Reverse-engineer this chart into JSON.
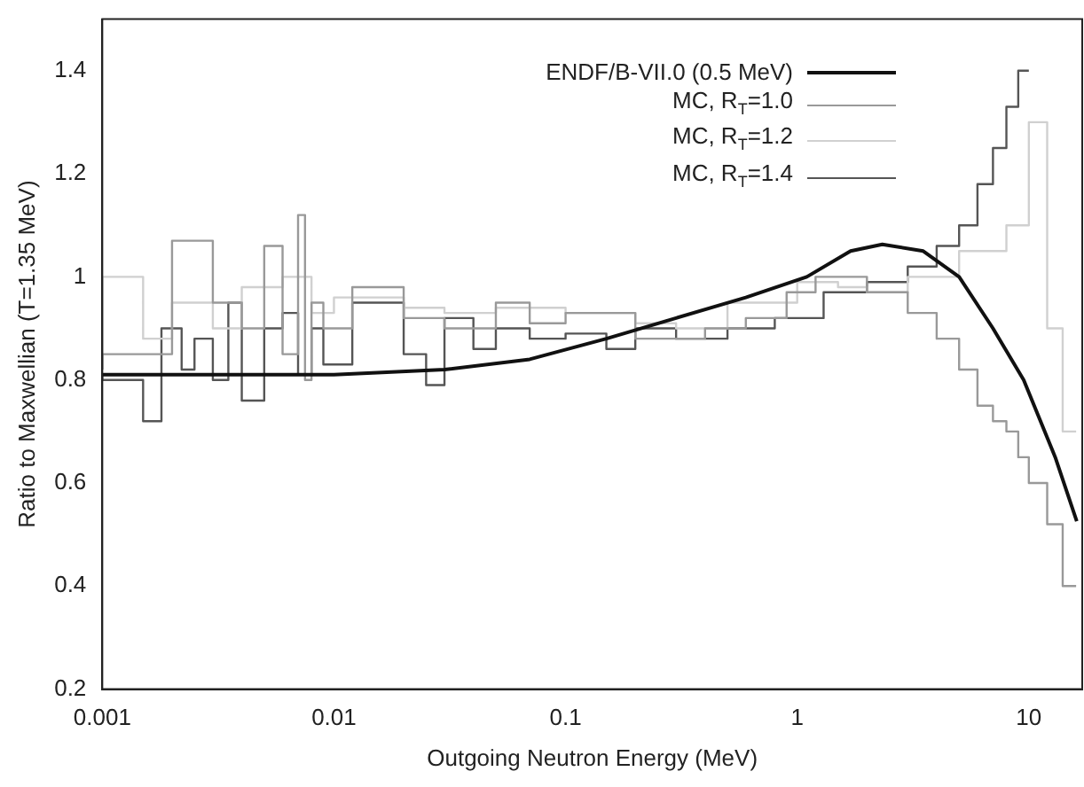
{
  "chart_data": {
    "type": "step",
    "xlabel": "Outgoing Neutron Energy (MeV)",
    "ylabel": "Ratio to Maxwellian (T=1.35 MeV)",
    "log": "x",
    "xlim": [
      0.001,
      17
    ],
    "xticks": [
      0.001,
      0.01,
      0.1,
      1,
      10
    ],
    "ylim": [
      0.2,
      1.5
    ],
    "yticks": [
      0.2,
      0.4,
      0.6,
      0.8,
      1,
      1.2,
      1.4
    ],
    "grid": false,
    "legend": "top right",
    "marker": "none",
    "series": [
      {
        "name": "ENDF/B-VII.0 (0.5 MeV)",
        "type": "line",
        "color": "#111111",
        "x": [
          0.001,
          0.003,
          0.01,
          0.03,
          0.07,
          0.15,
          0.3,
          0.6,
          1.1,
          1.7,
          2.33,
          3.5,
          5,
          7,
          9.5,
          13,
          16.1
        ],
        "values": [
          0.81,
          0.81,
          0.81,
          0.82,
          0.84,
          0.88,
          0.92,
          0.96,
          1.0,
          1.05,
          1.063,
          1.05,
          1.0,
          0.9,
          0.8,
          0.65,
          0.526
        ]
      },
      {
        "name": "MC, R$_{T}$=1.0",
        "color": "#999999",
        "x": [
          0.001,
          0.002,
          0.003,
          0.004,
          0.005,
          0.006,
          0.007,
          0.0075,
          0.008,
          0.009,
          0.012,
          0.02,
          0.03,
          0.05,
          0.07,
          0.1,
          0.2,
          0.4,
          0.6,
          0.9,
          1.2,
          2,
          3,
          4,
          5,
          6,
          7,
          8,
          9,
          10,
          12,
          14,
          16
        ],
        "values": [
          0.82,
          0.85,
          1.07,
          0.95,
          0.9,
          1.06,
          0.85,
          1.12,
          0.8,
          0.95,
          0.9,
          0.98,
          0.92,
          0.9,
          0.95,
          0.91,
          0.93,
          0.88,
          0.9,
          0.92,
          0.97,
          1.0,
          0.97,
          0.93,
          0.88,
          0.82,
          0.75,
          0.72,
          0.7,
          0.65,
          0.6,
          0.52,
          0.4
        ]
      },
      {
        "name": "MC, R$_{T}$=1.2",
        "color": "#d0d0d0",
        "x": [
          0.001,
          0.0015,
          0.002,
          0.003,
          0.004,
          0.006,
          0.008,
          0.01,
          0.02,
          0.03,
          0.05,
          0.1,
          0.2,
          0.3,
          0.5,
          1,
          1.5,
          2,
          3,
          5,
          8,
          10,
          12,
          14,
          16
        ],
        "values": [
          0.82,
          1.0,
          0.88,
          0.95,
          0.9,
          0.98,
          1.0,
          0.93,
          0.96,
          0.94,
          0.93,
          0.94,
          0.93,
          0.91,
          0.9,
          0.95,
          0.99,
          0.98,
          0.97,
          1.0,
          1.05,
          1.1,
          1.3,
          0.9,
          0.7
        ]
      },
      {
        "name": "MC, R$_{T}$=1.4",
        "color": "#555555",
        "x": [
          0.001,
          0.0015,
          0.0018,
          0.0022,
          0.0025,
          0.003,
          0.0035,
          0.004,
          0.005,
          0.006,
          0.007,
          0.008,
          0.009,
          0.012,
          0.02,
          0.025,
          0.03,
          0.04,
          0.05,
          0.07,
          0.1,
          0.15,
          0.2,
          0.3,
          0.5,
          0.8,
          1.3,
          2,
          3,
          4,
          5,
          6,
          7,
          8,
          9,
          10
        ],
        "values": [
          0.81,
          0.8,
          0.72,
          0.9,
          0.82,
          0.88,
          0.8,
          0.95,
          0.76,
          0.9,
          0.93,
          0.81,
          0.9,
          0.83,
          0.95,
          0.85,
          0.79,
          0.92,
          0.86,
          0.9,
          0.88,
          0.89,
          0.86,
          0.9,
          0.88,
          0.9,
          0.92,
          0.97,
          0.99,
          1.02,
          1.06,
          1.1,
          1.18,
          1.25,
          1.33,
          1.4
        ]
      }
    ]
  }
}
